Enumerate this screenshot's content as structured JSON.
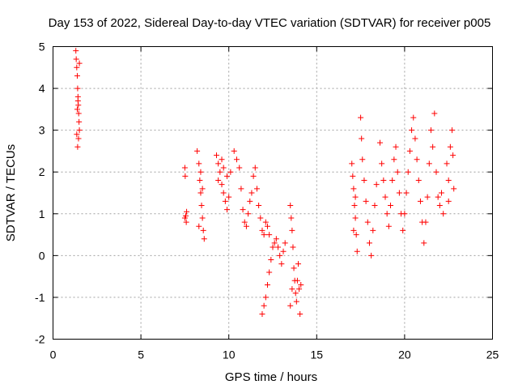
{
  "chart_data": {
    "type": "scatter",
    "title": "Day 153 of 2022, Sidereal Day-to-day VTEC variation (SDTVAR) for receiver p005",
    "xlabel": "GPS time / hours",
    "ylabel": "SDTVAR / TECUs",
    "xlim": [
      0,
      25
    ],
    "ylim": [
      -2,
      5
    ],
    "xticks": [
      "0",
      "5",
      "10",
      "15",
      "20",
      "25"
    ],
    "yticks": [
      "-2",
      "-1",
      "0",
      "1",
      "2",
      "3",
      "4",
      "5"
    ],
    "grid": true,
    "marker": "+",
    "color": "#ff0000",
    "series": [
      {
        "name": "SDTVAR",
        "points": [
          [
            1.3,
            4.9
          ],
          [
            1.32,
            4.7
          ],
          [
            1.35,
            4.5
          ],
          [
            1.38,
            4.3
          ],
          [
            1.4,
            4.0
          ],
          [
            1.42,
            3.8
          ],
          [
            1.44,
            3.6
          ],
          [
            1.46,
            3.4
          ],
          [
            1.48,
            3.2
          ],
          [
            1.5,
            3.0
          ],
          [
            1.45,
            2.8
          ],
          [
            1.4,
            2.6
          ],
          [
            1.38,
            3.5
          ],
          [
            1.42,
            3.7
          ],
          [
            1.5,
            4.6
          ],
          [
            1.35,
            2.9
          ],
          [
            7.5,
            2.1
          ],
          [
            7.52,
            1.9
          ],
          [
            7.55,
            0.95
          ],
          [
            7.58,
            0.8
          ],
          [
            7.6,
            1.05
          ],
          [
            7.5,
            0.9
          ],
          [
            8.2,
            2.5
          ],
          [
            8.3,
            2.2
          ],
          [
            8.35,
            1.8
          ],
          [
            8.4,
            1.5
          ],
          [
            8.45,
            1.2
          ],
          [
            8.5,
            0.9
          ],
          [
            8.55,
            0.6
          ],
          [
            8.6,
            0.4
          ],
          [
            8.4,
            2.0
          ],
          [
            8.3,
            0.7
          ],
          [
            8.5,
            1.6
          ],
          [
            9.3,
            2.4
          ],
          [
            9.4,
            2.2
          ],
          [
            9.5,
            2.0
          ],
          [
            9.6,
            1.7
          ],
          [
            9.7,
            1.5
          ],
          [
            9.8,
            1.3
          ],
          [
            9.9,
            1.1
          ],
          [
            10.0,
            1.4
          ],
          [
            9.6,
            2.3
          ],
          [
            9.9,
            1.9
          ],
          [
            10.1,
            2.0
          ],
          [
            9.4,
            1.8
          ],
          [
            9.7,
            2.1
          ],
          [
            10.3,
            2.5
          ],
          [
            10.45,
            2.3
          ],
          [
            10.6,
            2.1
          ],
          [
            10.7,
            1.6
          ],
          [
            10.8,
            1.1
          ],
          [
            10.9,
            0.8
          ],
          [
            11.0,
            0.7
          ],
          [
            11.1,
            1.0
          ],
          [
            11.2,
            1.3
          ],
          [
            11.3,
            1.5
          ],
          [
            11.4,
            1.9
          ],
          [
            11.5,
            2.1
          ],
          [
            11.6,
            1.6
          ],
          [
            11.7,
            1.2
          ],
          [
            11.8,
            0.9
          ],
          [
            11.9,
            0.6
          ],
          [
            12.0,
            0.5
          ],
          [
            12.1,
            0.8
          ],
          [
            12.2,
            0.7
          ],
          [
            12.3,
            0.5
          ],
          [
            11.9,
            -1.4
          ],
          [
            12.0,
            -1.2
          ],
          [
            12.1,
            -1.0
          ],
          [
            12.2,
            -0.7
          ],
          [
            12.3,
            -0.4
          ],
          [
            12.4,
            -0.1
          ],
          [
            12.5,
            0.2
          ],
          [
            12.6,
            0.3
          ],
          [
            12.7,
            0.4
          ],
          [
            12.8,
            0.2
          ],
          [
            12.9,
            0.0
          ],
          [
            13.0,
            -0.2
          ],
          [
            13.1,
            0.1
          ],
          [
            13.2,
            0.3
          ],
          [
            13.5,
            1.2
          ],
          [
            13.55,
            0.9
          ],
          [
            13.6,
            0.6
          ],
          [
            13.65,
            0.2
          ],
          [
            13.7,
            -0.3
          ],
          [
            13.75,
            -0.6
          ],
          [
            13.8,
            -0.9
          ],
          [
            13.85,
            -1.1
          ],
          [
            13.9,
            -0.6
          ],
          [
            13.95,
            -0.2
          ],
          [
            14.0,
            -0.8
          ],
          [
            14.05,
            -1.4
          ],
          [
            14.1,
            -0.7
          ],
          [
            13.5,
            -1.2
          ],
          [
            13.6,
            -0.8
          ],
          [
            17.0,
            2.2
          ],
          [
            17.05,
            1.9
          ],
          [
            17.1,
            1.6
          ],
          [
            17.15,
            1.2
          ],
          [
            17.2,
            0.9
          ],
          [
            17.25,
            0.5
          ],
          [
            17.3,
            0.1
          ],
          [
            17.1,
            0.6
          ],
          [
            17.2,
            1.4
          ],
          [
            17.5,
            3.3
          ],
          [
            17.55,
            2.8
          ],
          [
            17.6,
            2.3
          ],
          [
            17.7,
            1.8
          ],
          [
            17.8,
            1.3
          ],
          [
            17.9,
            0.8
          ],
          [
            18.0,
            0.3
          ],
          [
            18.1,
            0.0
          ],
          [
            18.2,
            0.6
          ],
          [
            18.3,
            1.2
          ],
          [
            18.4,
            1.7
          ],
          [
            18.6,
            2.7
          ],
          [
            18.7,
            2.2
          ],
          [
            18.8,
            1.8
          ],
          [
            18.9,
            1.4
          ],
          [
            19.0,
            1.0
          ],
          [
            19.1,
            0.7
          ],
          [
            19.2,
            1.2
          ],
          [
            19.3,
            1.8
          ],
          [
            19.4,
            2.3
          ],
          [
            19.5,
            2.6
          ],
          [
            19.6,
            2.0
          ],
          [
            19.7,
            1.5
          ],
          [
            19.8,
            1.0
          ],
          [
            19.9,
            0.6
          ],
          [
            20.0,
            1.0
          ],
          [
            20.1,
            1.5
          ],
          [
            20.2,
            2.0
          ],
          [
            20.3,
            2.5
          ],
          [
            20.4,
            3.0
          ],
          [
            20.5,
            3.3
          ],
          [
            20.6,
            2.8
          ],
          [
            20.7,
            2.3
          ],
          [
            20.8,
            1.8
          ],
          [
            20.9,
            1.3
          ],
          [
            21.0,
            0.8
          ],
          [
            21.1,
            0.3
          ],
          [
            21.2,
            0.8
          ],
          [
            21.3,
            1.4
          ],
          [
            21.4,
            2.2
          ],
          [
            21.5,
            3.0
          ],
          [
            21.6,
            2.6
          ],
          [
            21.7,
            3.4
          ],
          [
            21.8,
            2.0
          ],
          [
            21.9,
            1.4
          ],
          [
            22.0,
            1.2
          ],
          [
            22.1,
            1.5
          ],
          [
            22.2,
            1.0
          ],
          [
            22.4,
            2.2
          ],
          [
            22.5,
            1.8
          ],
          [
            22.6,
            2.6
          ],
          [
            22.7,
            3.0
          ],
          [
            22.75,
            2.4
          ],
          [
            22.8,
            1.6
          ],
          [
            22.5,
            1.3
          ]
        ]
      }
    ]
  }
}
